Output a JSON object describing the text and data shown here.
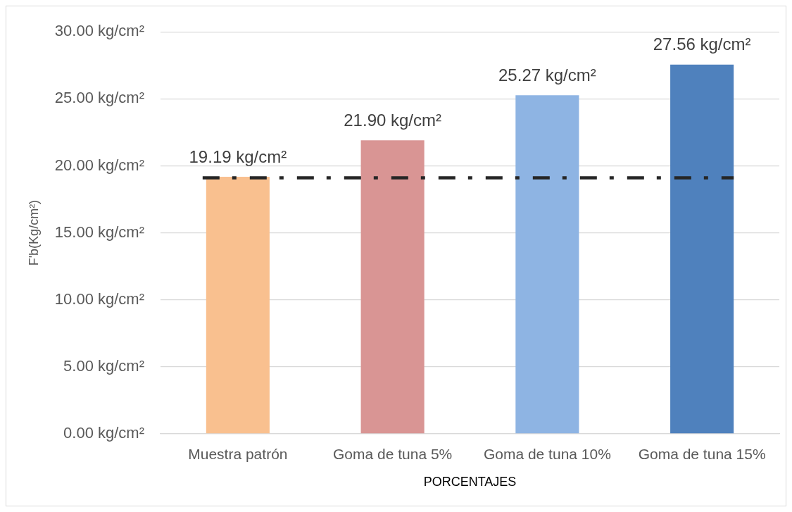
{
  "chart_data": {
    "type": "bar",
    "xlabel": "PORCENTAJES",
    "ylabel": "F'b(Kg/cm²)",
    "categories": [
      "Muestra patrón",
      "Goma de tuna 5%",
      "Goma de tuna 10%",
      "Goma de tuna 15%"
    ],
    "values": [
      19.19,
      21.9,
      25.27,
      27.56
    ],
    "colors": [
      "#f9c08f",
      "#d99594",
      "#8eb4e3",
      "#4f81bd"
    ],
    "value_labels": [
      "19.19 kg/cm²",
      "21.90 kg/cm²",
      "25.27 kg/cm²",
      "27.56 kg/cm²"
    ],
    "ylim": [
      0,
      30
    ],
    "yticks": [
      {
        "value": 0,
        "label": "0.00 kg/cm²"
      },
      {
        "value": 5,
        "label": "5.00 kg/cm²"
      },
      {
        "value": 10,
        "label": "10.00 kg/cm²"
      },
      {
        "value": 15,
        "label": "15.00 kg/cm²"
      },
      {
        "value": 20,
        "label": "20.00 kg/cm²"
      },
      {
        "value": 25,
        "label": "25.00 kg/cm²"
      },
      {
        "value": 30,
        "label": "30.00 kg/cm²"
      }
    ],
    "grid": "y",
    "ref_lines": [
      {
        "axis": "y",
        "value": 19.1,
        "color": "#262626",
        "line_style": "dashed"
      }
    ]
  }
}
